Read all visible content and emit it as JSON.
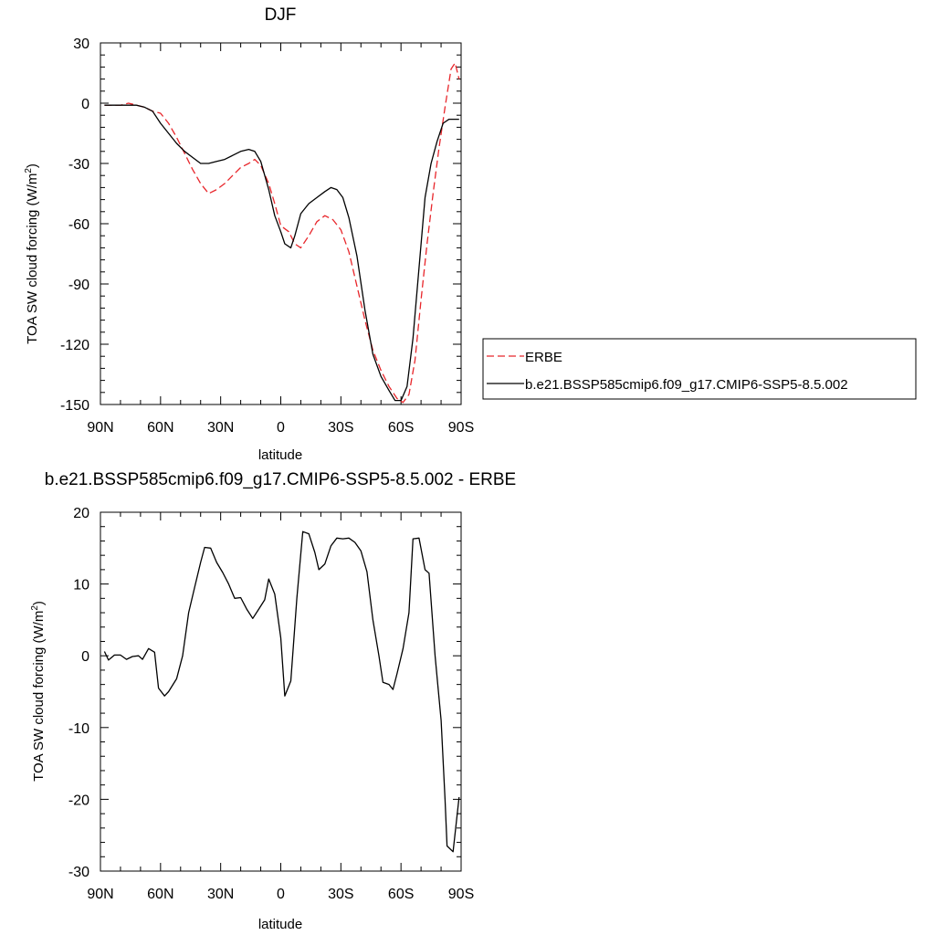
{
  "colors": {
    "erbe": "#e8262b",
    "model": "#000000",
    "frame": "#000000"
  },
  "chart_data": [
    {
      "type": "line",
      "title": "DJF",
      "xlabel": "latitude",
      "ylabel": "TOA SW cloud forcing (W/m",
      "ylabel_sup": "2",
      "ylabel_close": ")",
      "xlim": [
        90,
        -90
      ],
      "ylim": [
        -150,
        30
      ],
      "xticks": [
        90,
        60,
        30,
        0,
        -30,
        -60,
        -90
      ],
      "xtick_labels": [
        "90N",
        "60N",
        "30N",
        "0",
        "30S",
        "60S",
        "90S"
      ],
      "yticks": [
        30,
        0,
        -30,
        -60,
        -90,
        -120,
        -150
      ],
      "ytick_labels": [
        "30",
        "0",
        "-30",
        "-60",
        "-90",
        "-120",
        "-150"
      ],
      "grid": false,
      "legend": "right",
      "series": [
        {
          "name": "ERBE",
          "style": "dashed",
          "color": "#e8262b",
          "points": [
            [
              88,
              -1
            ],
            [
              84,
              -1
            ],
            [
              80,
              -1
            ],
            [
              76,
              0
            ],
            [
              72,
              -1
            ],
            [
              68,
              -2
            ],
            [
              64,
              -4
            ],
            [
              60,
              -5
            ],
            [
              56,
              -10
            ],
            [
              52,
              -17
            ],
            [
              48,
              -25
            ],
            [
              44,
              -33
            ],
            [
              40,
              -40
            ],
            [
              36,
              -45
            ],
            [
              32,
              -43
            ],
            [
              28,
              -40
            ],
            [
              24,
              -36
            ],
            [
              20,
              -32
            ],
            [
              16,
              -30
            ],
            [
              13,
              -28
            ],
            [
              10,
              -31
            ],
            [
              6,
              -40
            ],
            [
              3,
              -50
            ],
            [
              0,
              -61
            ],
            [
              -4,
              -64
            ],
            [
              -7,
              -70
            ],
            [
              -10,
              -72
            ],
            [
              -14,
              -66
            ],
            [
              -18,
              -59
            ],
            [
              -22,
              -56
            ],
            [
              -26,
              -58
            ],
            [
              -30,
              -63
            ],
            [
              -34,
              -74
            ],
            [
              -38,
              -91
            ],
            [
              -42,
              -108
            ],
            [
              -46,
              -123
            ],
            [
              -50,
              -133
            ],
            [
              -54,
              -141
            ],
            [
              -58,
              -147
            ],
            [
              -61,
              -149
            ],
            [
              -64,
              -145
            ],
            [
              -67,
              -128
            ],
            [
              -70,
              -98
            ],
            [
              -73,
              -70
            ],
            [
              -76,
              -45
            ],
            [
              -79,
              -22
            ],
            [
              -82,
              -2
            ],
            [
              -85,
              17
            ],
            [
              -87,
              20
            ],
            [
              -89,
              12
            ]
          ]
        },
        {
          "name": "b.e21.BSSP585cmip6.f09_g17.CMIP6-SSP5-8.5.002",
          "style": "solid",
          "color": "#000000",
          "points": [
            [
              88,
              -1
            ],
            [
              84,
              -1
            ],
            [
              80,
              -1
            ],
            [
              76,
              -1
            ],
            [
              72,
              -1
            ],
            [
              68,
              -2
            ],
            [
              64,
              -4
            ],
            [
              60,
              -10
            ],
            [
              56,
              -15
            ],
            [
              52,
              -20
            ],
            [
              48,
              -24
            ],
            [
              44,
              -27
            ],
            [
              40,
              -30
            ],
            [
              36,
              -30
            ],
            [
              32,
              -29
            ],
            [
              28,
              -28
            ],
            [
              24,
              -26
            ],
            [
              20,
              -24
            ],
            [
              16,
              -23
            ],
            [
              13,
              -24
            ],
            [
              10,
              -29
            ],
            [
              6,
              -43
            ],
            [
              3,
              -56
            ],
            [
              0,
              -64
            ],
            [
              -2,
              -70
            ],
            [
              -5,
              -72
            ],
            [
              -7,
              -66
            ],
            [
              -10,
              -55
            ],
            [
              -14,
              -50
            ],
            [
              -18,
              -47
            ],
            [
              -22,
              -44
            ],
            [
              -25,
              -42
            ],
            [
              -28,
              -43
            ],
            [
              -31,
              -47
            ],
            [
              -34,
              -57
            ],
            [
              -38,
              -76
            ],
            [
              -42,
              -103
            ],
            [
              -46,
              -125
            ],
            [
              -50,
              -136
            ],
            [
              -54,
              -143
            ],
            [
              -57,
              -148
            ],
            [
              -60,
              -148
            ],
            [
              -63,
              -141
            ],
            [
              -66,
              -117
            ],
            [
              -69,
              -82
            ],
            [
              -72,
              -47
            ],
            [
              -75,
              -30
            ],
            [
              -78,
              -19
            ],
            [
              -81,
              -10
            ],
            [
              -84,
              -8
            ],
            [
              -87,
              -8
            ],
            [
              -89,
              -8
            ]
          ]
        }
      ]
    },
    {
      "type": "line",
      "title": "b.e21.BSSP585cmip6.f09_g17.CMIP6-SSP5-8.5.002 - ERBE",
      "xlabel": "latitude",
      "ylabel": "TOA SW cloud forcing (W/m",
      "ylabel_sup": "2",
      "ylabel_close": ")",
      "xlim": [
        90,
        -90
      ],
      "ylim": [
        -30,
        20
      ],
      "xticks": [
        90,
        60,
        30,
        0,
        -30,
        -60,
        -90
      ],
      "xtick_labels": [
        "90N",
        "60N",
        "30N",
        "0",
        "30S",
        "60S",
        "90S"
      ],
      "yticks": [
        20,
        10,
        0,
        -10,
        -20,
        -30
      ],
      "ytick_labels": [
        "20",
        "10",
        "0",
        "-10",
        "-20",
        "-30"
      ],
      "grid": false,
      "series": [
        {
          "style": "solid",
          "color": "#000000",
          "points": [
            [
              88,
              0.6
            ],
            [
              86,
              -0.6
            ],
            [
              83,
              0.1
            ],
            [
              80,
              0.1
            ],
            [
              77,
              -0.5
            ],
            [
              74,
              -0.1
            ],
            [
              71,
              0
            ],
            [
              69,
              -0.5
            ],
            [
              66,
              1
            ],
            [
              63,
              0.5
            ],
            [
              61,
              -4.5
            ],
            [
              58,
              -5.6
            ],
            [
              56,
              -5
            ],
            [
              52,
              -3.2
            ],
            [
              49,
              0
            ],
            [
              46,
              6
            ],
            [
              43,
              9.5
            ],
            [
              40,
              13
            ],
            [
              38,
              15.1
            ],
            [
              35,
              15
            ],
            [
              32,
              13
            ],
            [
              29,
              11.6
            ],
            [
              26,
              10
            ],
            [
              23,
              8
            ],
            [
              20,
              8.1
            ],
            [
              17,
              6.5
            ],
            [
              14,
              5.2
            ],
            [
              11,
              6.5
            ],
            [
              8,
              7.8
            ],
            [
              6,
              10.7
            ],
            [
              3,
              8.6
            ],
            [
              0,
              2.5
            ],
            [
              -2,
              -5.6
            ],
            [
              -5,
              -3.5
            ],
            [
              -8,
              8
            ],
            [
              -11,
              17.3
            ],
            [
              -14,
              17
            ],
            [
              -17,
              14.4
            ],
            [
              -19,
              12
            ],
            [
              -22,
              12.8
            ],
            [
              -25,
              15.3
            ],
            [
              -28,
              16.4
            ],
            [
              -31,
              16.3
            ],
            [
              -34,
              16.4
            ],
            [
              -37,
              15.8
            ],
            [
              -40,
              14.6
            ],
            [
              -43,
              11.7
            ],
            [
              -46,
              5
            ],
            [
              -49,
              0
            ],
            [
              -51,
              -3.7
            ],
            [
              -54,
              -4
            ],
            [
              -56,
              -4.7
            ],
            [
              -58,
              -2.5
            ],
            [
              -61,
              1
            ],
            [
              -64,
              6
            ],
            [
              -66,
              16.3
            ],
            [
              -69,
              16.4
            ],
            [
              -72,
              12
            ],
            [
              -74,
              11.5
            ],
            [
              -77,
              0
            ],
            [
              -80,
              -9
            ],
            [
              -82,
              -20
            ],
            [
              -83,
              -26.5
            ],
            [
              -86,
              -27.3
            ],
            [
              -89,
              -19.7
            ]
          ]
        }
      ]
    }
  ]
}
